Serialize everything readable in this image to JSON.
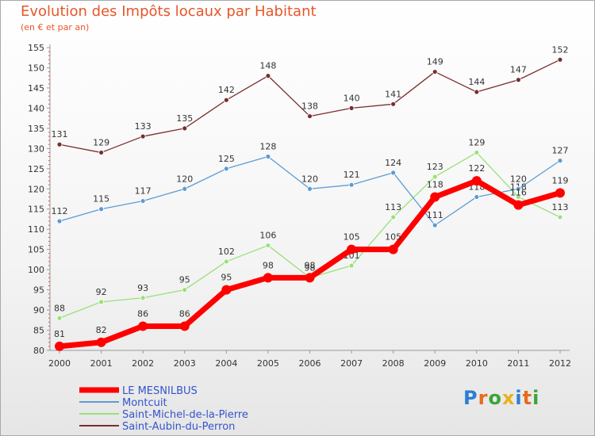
{
  "chart_data": {
    "type": "line",
    "title": "Evolution des Impôts locaux par Habitant",
    "subtitle": "(en € et par an)",
    "x": [
      "2000",
      "2001",
      "2002",
      "2003",
      "2004",
      "2005",
      "2006",
      "2007",
      "2008",
      "2009",
      "2010",
      "2011",
      "2012"
    ],
    "ylim": [
      80,
      155
    ],
    "yticks": [
      80,
      85,
      90,
      95,
      100,
      105,
      110,
      115,
      120,
      125,
      130,
      135,
      140,
      145,
      150,
      155
    ],
    "grid": false,
    "legend_position": "bottom-left",
    "series": [
      {
        "name": "LE MESNILBUS",
        "color": "#ff0000",
        "values": [
          81,
          82,
          86,
          86,
          95,
          98,
          98,
          105,
          105,
          118,
          122,
          116,
          119
        ]
      },
      {
        "name": "Montcuit",
        "color": "#5b9bd5",
        "values": [
          112,
          115,
          117,
          120,
          125,
          128,
          120,
          121,
          124,
          111,
          118,
          120,
          127
        ]
      },
      {
        "name": "Saint-Michel-de-la-Pierre",
        "color": "#99e07a",
        "values": [
          88,
          92,
          93,
          95,
          102,
          106,
          98,
          101,
          113,
          123,
          129,
          118,
          113
        ]
      },
      {
        "name": "Saint-Aubin-du-Perron",
        "color": "#7a2e2e",
        "values": [
          131,
          129,
          133,
          135,
          142,
          148,
          138,
          140,
          141,
          149,
          144,
          147,
          152
        ]
      }
    ]
  },
  "logo": {
    "letters": [
      "P",
      "r",
      "o",
      "x",
      "i",
      "t",
      "i"
    ],
    "colors": [
      "#2a7fd4",
      "#e86a1c",
      "#3aa53a",
      "#e8b21c",
      "#2a7fd4",
      "#e86a1c",
      "#3aa53a"
    ]
  }
}
